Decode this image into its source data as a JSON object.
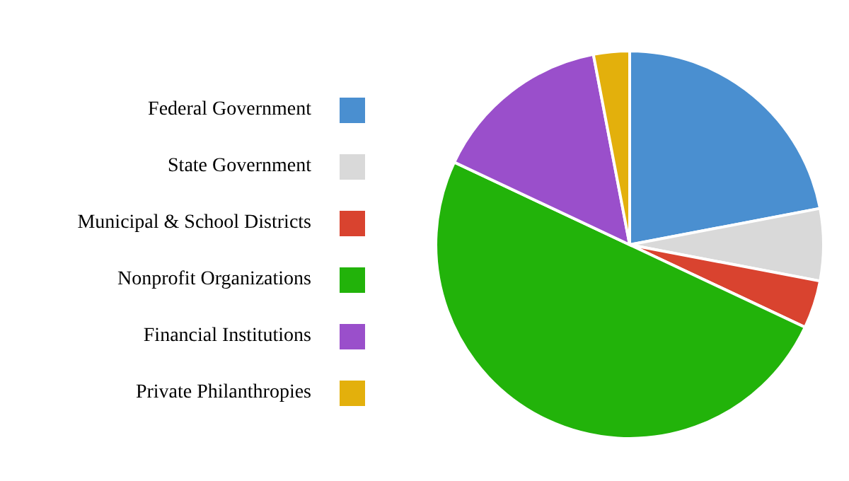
{
  "chart_data": {
    "type": "pie",
    "categories": [
      "Federal Government",
      "State Government",
      "Municipal & School Districts",
      "Nonprofit Organizations",
      "Financial Institutions",
      "Private Philanthropies"
    ],
    "values": [
      22,
      6,
      4,
      50,
      15,
      3
    ],
    "colors": [
      "#4a8fd0",
      "#d9d9d9",
      "#d9432f",
      "#22b30a",
      "#9a4fcb",
      "#e3b00c"
    ],
    "legend": "left"
  }
}
